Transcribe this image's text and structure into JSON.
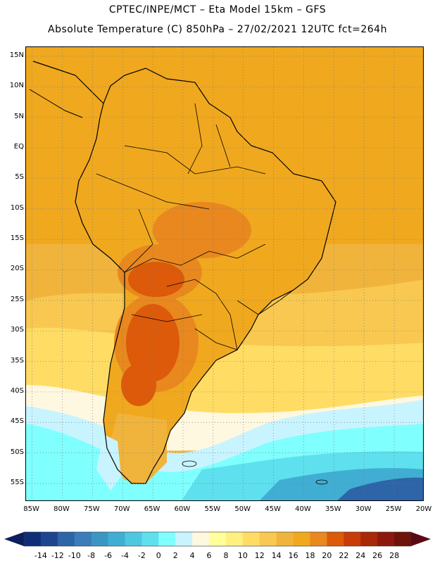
{
  "header": {
    "line1": "CPTEC/INPE/MCT –  Eta Model 15km – GFS",
    "line2": "Absolute Temperature (C) 850hPa – 27/02/2021 12UTC fct=264h"
  },
  "map": {
    "lat_labels": [
      "15N",
      "10N",
      "5N",
      "EQ",
      "5S",
      "10S",
      "15S",
      "20S",
      "25S",
      "30S",
      "35S",
      "40S",
      "45S",
      "50S",
      "55S"
    ],
    "lon_labels": [
      "85W",
      "80W",
      "75W",
      "70W",
      "65W",
      "60W",
      "55W",
      "50W",
      "45W",
      "40W",
      "35W",
      "30W",
      "25W",
      "20W"
    ],
    "lat_values": [
      15,
      10,
      5,
      0,
      -5,
      -10,
      -15,
      -20,
      -25,
      -30,
      -35,
      -40,
      -45,
      -50,
      -55
    ],
    "lon_values": [
      -85,
      -80,
      -75,
      -70,
      -65,
      -60,
      -55,
      -50,
      -45,
      -40,
      -35,
      -30,
      -25,
      -20
    ],
    "lat_range": [
      -58,
      16.5
    ],
    "lon_range": [
      -86,
      -20
    ]
  },
  "legend": {
    "labels": [
      "-14",
      "-12",
      "-10",
      "-8",
      "-6",
      "-4",
      "-2",
      "0",
      "2",
      "4",
      "6",
      "8",
      "10",
      "12",
      "14",
      "16",
      "18",
      "20",
      "22",
      "24",
      "26",
      "28"
    ],
    "colors": [
      "#102e78",
      "#1e4690",
      "#2e64a8",
      "#3c7cb8",
      "#3c96c4",
      "#40aed2",
      "#4ec8e0",
      "#5ee0ee",
      "#80ffff",
      "#c8f4ff",
      "#fff8e0",
      "#ffff9c",
      "#fff080",
      "#ffdc64",
      "#f8c850",
      "#f0b43c",
      "#f0a81e",
      "#e8881e",
      "#dc5a0a",
      "#c83c0a",
      "#a82808",
      "#8c1a0c",
      "#6e1408"
    ],
    "low_arrow_color": "#0c1e5c",
    "high_arrow_color": "#5a0a14"
  }
}
